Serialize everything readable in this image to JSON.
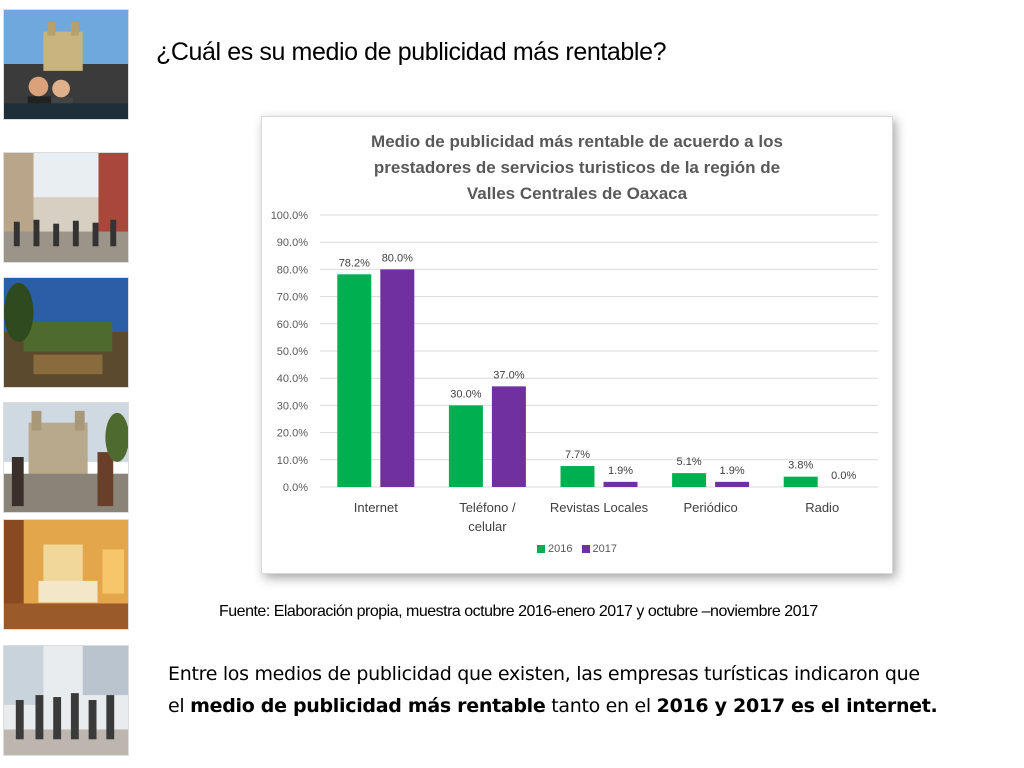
{
  "page": {
    "title": "¿Cuál es su medio de publicidad más rentable?",
    "source": "Fuente: Elaboración propia, muestra octubre 2016-enero 2017 y octubre –noviembre 2017",
    "body": {
      "line1": "Entre los medios de publicidad que existen, las empresas turísticas indicaron que",
      "line2_a": "el ",
      "line2_b": "medio de publicidad más rentable",
      "line2_c": " tanto en el ",
      "line2_d": "2016 y 2017 es el internet."
    }
  },
  "chart_data": {
    "type": "bar",
    "title_lines": [
      "Medio de publicidad más rentable de acuerdo a los",
      "prestadores de servicios turisticos de la región de",
      "Valles Centrales de Oaxaca"
    ],
    "categories": [
      [
        "Internet"
      ],
      [
        "Teléfono /",
        "celular"
      ],
      [
        "Revistas Locales"
      ],
      [
        "Periódico"
      ],
      [
        "Radio"
      ]
    ],
    "series": [
      {
        "name": "2016",
        "values": [
          78.2,
          30.0,
          7.7,
          5.1,
          3.8
        ],
        "labels": [
          "78.2%",
          "30.0%",
          "7.7%",
          "5.1%",
          "3.8%"
        ],
        "color": "#00b050"
      },
      {
        "name": "2017",
        "values": [
          80.0,
          37.0,
          1.9,
          1.9,
          0.0
        ],
        "labels": [
          "80.0%",
          "37.0%",
          "1.9%",
          "1.9%",
          "0.0%"
        ],
        "color": "#7030a0"
      }
    ],
    "ylim": [
      0,
      100
    ],
    "yticks": [
      "0.0%",
      "10.0%",
      "20.0%",
      "30.0%",
      "40.0%",
      "50.0%",
      "60.0%",
      "70.0%",
      "80.0%",
      "90.0%",
      "100.0%"
    ],
    "grid": true,
    "legend_position": "bottom"
  },
  "photos": [
    "cathedral-plaza-photo",
    "pedestrian-street-photo",
    "garden-terrace-photo",
    "church-courtyard-photo",
    "hotel-room-photo",
    "crowd-street-photo"
  ]
}
